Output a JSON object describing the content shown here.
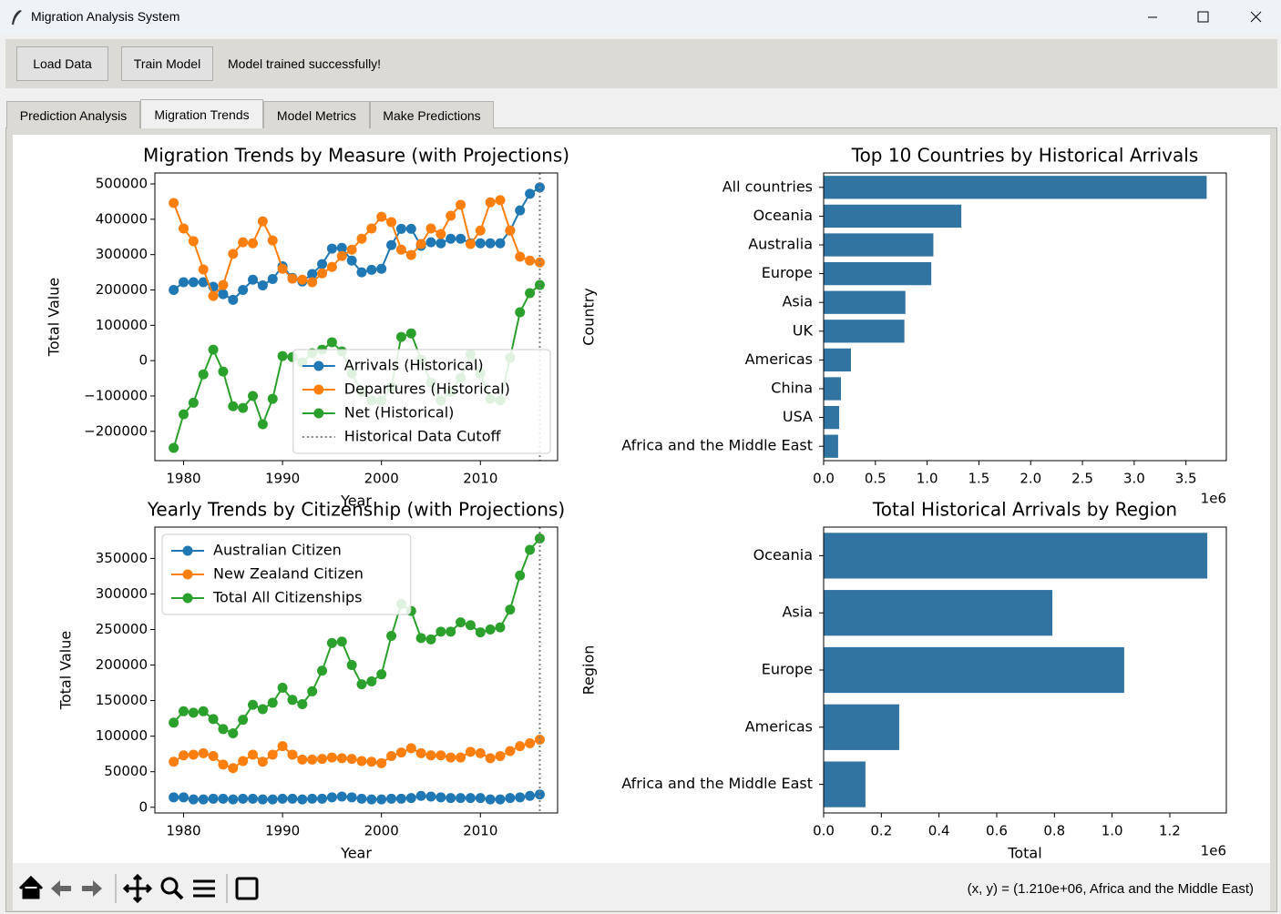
{
  "window": {
    "title": "Migration Analysis System"
  },
  "toolbar": {
    "buttons": [
      "Load Data",
      "Train Model"
    ],
    "status": "Model trained successfully!"
  },
  "tabs": {
    "items": [
      "Prediction Analysis",
      "Migration Trends",
      "Model Metrics",
      "Make Predictions"
    ],
    "active": 1
  },
  "navigation": {
    "coordinates": "(x, y) = (1.210e+06, Africa and the Middle East)"
  },
  "chart_data": [
    {
      "type": "line",
      "title": "Migration Trends by Measure (with Projections)",
      "x_label": "Year",
      "y_label": "Total Value",
      "x": [
        1979,
        1980,
        1981,
        1982,
        1983,
        1984,
        1985,
        1986,
        1987,
        1988,
        1989,
        1990,
        1991,
        1992,
        1993,
        1994,
        1995,
        1996,
        1997,
        1998,
        1999,
        2000,
        2001,
        2002,
        2003,
        2004,
        2005,
        2006,
        2007,
        2008,
        2009,
        2010,
        2011,
        2012,
        2013,
        2014,
        2015,
        2016
      ],
      "series": [
        {
          "name": "Arrivals (Historical)",
          "color": "#1f77b4",
          "values": [
            200000,
            222000,
            222000,
            222000,
            209000,
            188000,
            172000,
            200000,
            229000,
            213000,
            231000,
            267000,
            234000,
            224000,
            245000,
            273000,
            317000,
            319000,
            283000,
            250000,
            257000,
            260000,
            327000,
            373000,
            373000,
            325000,
            335000,
            332000,
            345000,
            345000,
            332000,
            332000,
            332000,
            332000,
            368000,
            425000,
            472000,
            490000
          ]
        },
        {
          "name": "Departures (Historical)",
          "color": "#ff7f0e",
          "values": [
            446000,
            374000,
            338000,
            258000,
            183000,
            214000,
            302000,
            335000,
            332000,
            394000,
            340000,
            260000,
            232000,
            229000,
            222000,
            247000,
            265000,
            296000,
            314000,
            345000,
            374000,
            407000,
            392000,
            314000,
            299000,
            330000,
            374000,
            358000,
            410000,
            441000,
            330000,
            368000,
            448000,
            454000,
            368000,
            294000,
            283000,
            278000
          ]
        },
        {
          "name": "Net (Historical)",
          "color": "#2ca02c",
          "values": [
            -247000,
            -152000,
            -119000,
            -39000,
            31000,
            -31000,
            -129000,
            -134000,
            -100000,
            -180000,
            -108000,
            13000,
            10000,
            -5000,
            21000,
            31000,
            52000,
            26000,
            -36000,
            -88000,
            -113000,
            -113000,
            -75000,
            67000,
            77000,
            3000,
            -62000,
            -113000,
            -88000,
            -49000,
            18000,
            -36000,
            -108000,
            -113000,
            8000,
            137000,
            191000,
            214000
          ]
        }
      ],
      "cutoff": {
        "x": 2016,
        "name": "Historical Data Cutoff",
        "color": "#808080"
      },
      "xlim": [
        1977.1,
        2017.8
      ],
      "xticks": [
        1980,
        1990,
        2000,
        2010
      ],
      "ylim": [
        -283000,
        531000
      ],
      "yticks": [
        {
          "value": -200000,
          "label": "−200000"
        },
        {
          "value": -100000,
          "label": "−100000"
        },
        0,
        100000,
        200000,
        300000,
        400000,
        500000
      ],
      "legend": "lower right"
    },
    {
      "type": "barh",
      "title": "Top 10 Countries by Historical Arrivals",
      "y_label": "Country",
      "offset_label": "1e6",
      "color": "#3274a1",
      "categories": [
        "All countries",
        "Oceania",
        "Australia",
        "Europe",
        "Asia",
        "UK",
        "Americas",
        "China",
        "USA",
        "Africa and the Middle East"
      ],
      "values": [
        3.7,
        1.33,
        1.06,
        1.04,
        0.79,
        0.78,
        0.264,
        0.167,
        0.15,
        0.14
      ],
      "xlim": [
        0,
        3.89
      ],
      "xticks": [
        {
          "value": 0,
          "label": "0.0"
        },
        0.5,
        {
          "value": 1,
          "label": "1.0"
        },
        1.5,
        {
          "value": 2,
          "label": "2.0"
        },
        2.5,
        {
          "value": 3,
          "label": "3.0"
        },
        3.5
      ]
    },
    {
      "type": "line",
      "title": "Yearly Trends by Citizenship (with Projections)",
      "x_label": "Year",
      "y_label": "Total Value",
      "x": [
        1979,
        1980,
        1981,
        1982,
        1983,
        1984,
        1985,
        1986,
        1987,
        1988,
        1989,
        1990,
        1991,
        1992,
        1993,
        1994,
        1995,
        1996,
        1997,
        1998,
        1999,
        2000,
        2001,
        2002,
        2003,
        2004,
        2005,
        2006,
        2007,
        2008,
        2009,
        2010,
        2011,
        2012,
        2013,
        2014,
        2015,
        2016
      ],
      "series": [
        {
          "name": "Australian Citizen",
          "color": "#1f77b4",
          "values": [
            14000,
            14000,
            11000,
            11000,
            12000,
            12000,
            11000,
            12000,
            12000,
            11000,
            11000,
            12000,
            12000,
            11000,
            12000,
            12000,
            14000,
            15000,
            14000,
            12000,
            11000,
            11000,
            12000,
            12000,
            13000,
            16000,
            15000,
            14000,
            13000,
            13000,
            13000,
            13000,
            11000,
            11000,
            13000,
            14000,
            16000,
            18000
          ]
        },
        {
          "name": "New Zealand Citizen",
          "color": "#ff7f0e",
          "values": [
            64000,
            73000,
            74000,
            76000,
            72000,
            60000,
            55000,
            65000,
            74000,
            64000,
            74000,
            86000,
            74000,
            67000,
            67000,
            68000,
            70000,
            69000,
            68000,
            65000,
            64000,
            62000,
            72000,
            77000,
            83000,
            76000,
            73000,
            73000,
            70000,
            70000,
            78000,
            76000,
            69000,
            72000,
            79000,
            86000,
            90000,
            95000
          ]
        },
        {
          "name": "Total All Citizenships",
          "color": "#2ca02c",
          "values": [
            119000,
            135000,
            133000,
            135000,
            124000,
            110000,
            104000,
            123000,
            144000,
            138000,
            147000,
            168000,
            151000,
            145000,
            163000,
            192000,
            231000,
            233000,
            200000,
            173000,
            177000,
            187000,
            241000,
            286000,
            276000,
            238000,
            236000,
            247000,
            247000,
            260000,
            256000,
            246000,
            250000,
            253000,
            278000,
            326000,
            362000,
            378000
          ]
        }
      ],
      "cutoff": {
        "x": 2016,
        "color": "#808080"
      },
      "xlim": [
        1977.1,
        2017.8
      ],
      "xticks": [
        1980,
        1990,
        2000,
        2010
      ],
      "ylim": [
        -8000,
        394000
      ],
      "yticks": [
        0,
        50000,
        100000,
        150000,
        200000,
        250000,
        300000,
        350000
      ],
      "legend": "upper left"
    },
    {
      "type": "barh",
      "title": "Total Historical Arrivals by Region",
      "x_label": "Total",
      "y_label": "Region",
      "offset_label": "1e6",
      "color": "#3274a1",
      "categories": [
        "Oceania",
        "Asia",
        "Europe",
        "Americas",
        "Africa and the Middle East"
      ],
      "values": [
        1.33,
        0.793,
        1.042,
        0.262,
        0.145
      ],
      "xlim": [
        0,
        1.396
      ],
      "xticks": [
        {
          "value": 0,
          "label": "0.0"
        },
        0.2,
        0.4,
        0.6,
        0.8,
        {
          "value": 1,
          "label": "1.0"
        },
        1.2
      ]
    }
  ]
}
